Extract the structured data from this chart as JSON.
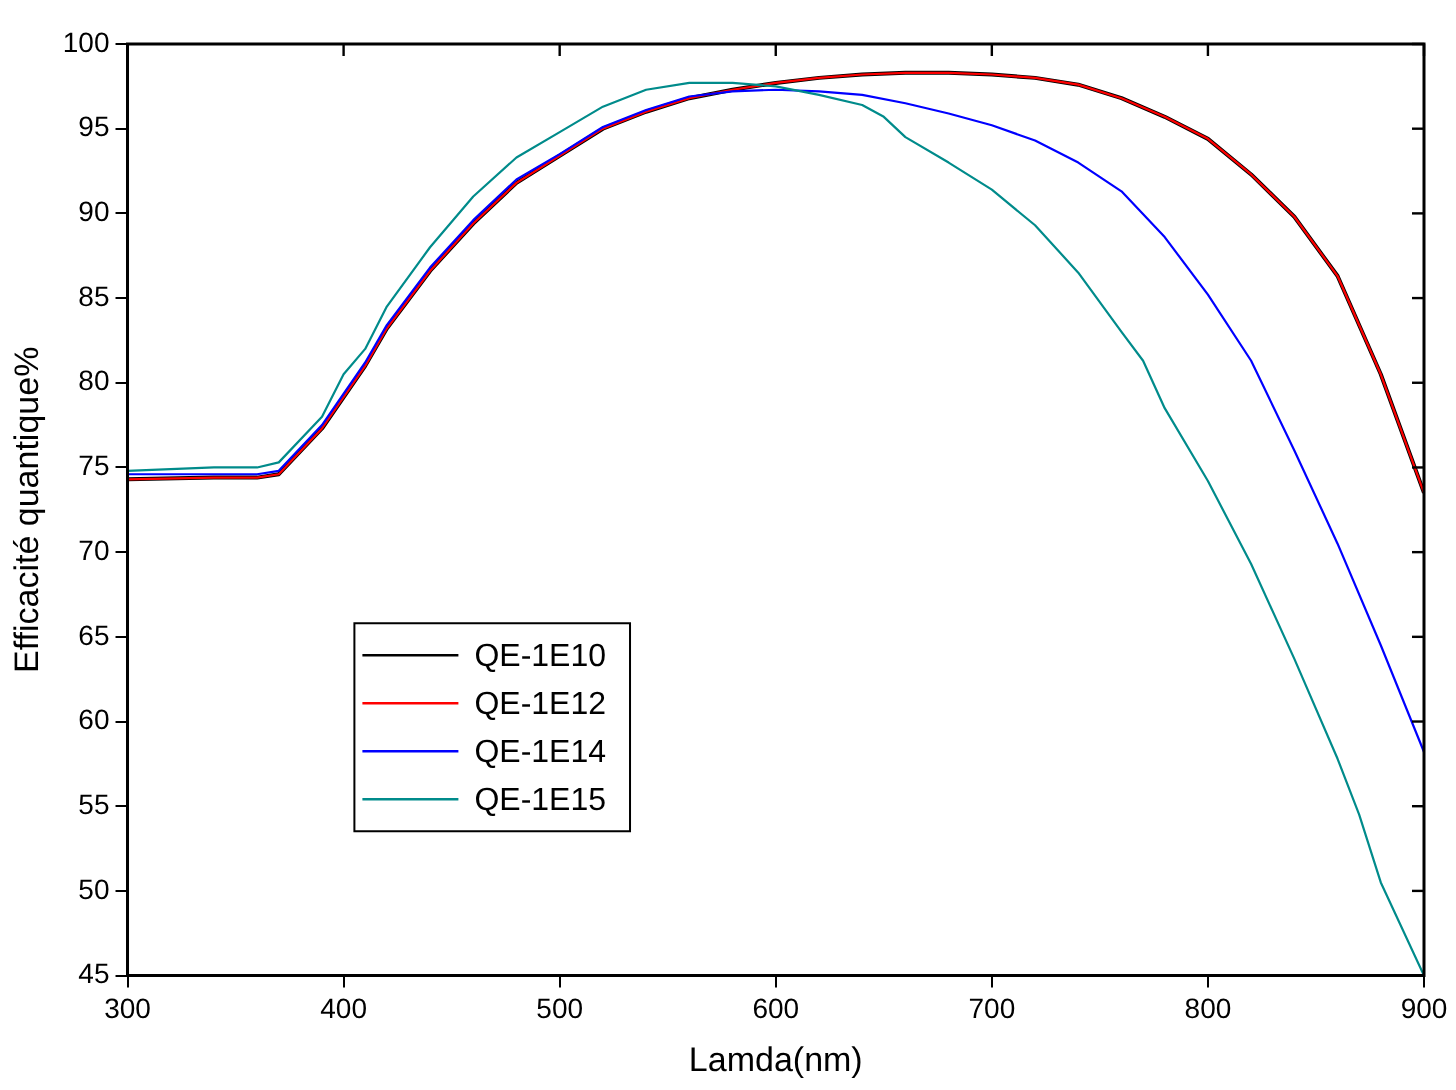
{
  "chart_data": {
    "type": "line",
    "xlabel": "Lamda(nm)",
    "ylabel": "Efficacité quantique%",
    "xlim": [
      300,
      900
    ],
    "xticks": [
      300,
      400,
      500,
      600,
      700,
      800,
      900
    ],
    "ylim": [
      45,
      100
    ],
    "yticks": [
      45,
      50,
      55,
      60,
      65,
      70,
      75,
      80,
      85,
      90,
      95,
      100
    ],
    "legend": "bottom left",
    "grid": false,
    "marker": "none",
    "line_style": "solid",
    "series": [
      {
        "name": "QE-1E10",
        "color": "#000000",
        "x": [
          300,
          340,
          360,
          370,
          390,
          410,
          420,
          440,
          460,
          480,
          500,
          520,
          540,
          560,
          580,
          600,
          620,
          640,
          660,
          680,
          700,
          720,
          740,
          760,
          780,
          800,
          820,
          840,
          860,
          880,
          900
        ],
        "values": [
          74.3,
          74.4,
          74.4,
          74.6,
          77.3,
          81,
          83.2,
          86.6,
          89.4,
          91.8,
          93.4,
          95,
          96,
          96.8,
          97.3,
          97.7,
          98,
          98.2,
          98.3,
          98.3,
          98.2,
          98,
          97.6,
          96.8,
          95.7,
          94.4,
          92.3,
          89.8,
          86.3,
          80.5,
          73.5
        ]
      },
      {
        "name": "QE-1E12",
        "color": "#ff0000",
        "x": [
          300,
          340,
          360,
          370,
          390,
          410,
          420,
          440,
          460,
          480,
          500,
          520,
          540,
          560,
          580,
          600,
          620,
          640,
          660,
          680,
          700,
          720,
          740,
          760,
          780,
          800,
          820,
          840,
          860,
          880,
          900
        ],
        "values": [
          74.3,
          74.4,
          74.4,
          74.6,
          77.3,
          81,
          83.2,
          86.6,
          89.4,
          91.8,
          93.4,
          95,
          96,
          96.8,
          97.3,
          97.7,
          98,
          98.2,
          98.3,
          98.3,
          98.2,
          98,
          97.6,
          96.8,
          95.7,
          94.4,
          92.3,
          89.8,
          86.3,
          80.5,
          73.5
        ]
      },
      {
        "name": "QE-1E14",
        "color": "#0000ff",
        "x": [
          300,
          340,
          360,
          370,
          390,
          410,
          420,
          440,
          460,
          480,
          500,
          520,
          540,
          560,
          580,
          600,
          620,
          640,
          660,
          680,
          700,
          720,
          740,
          760,
          780,
          800,
          820,
          840,
          860,
          880,
          900
        ],
        "values": [
          74.6,
          74.6,
          74.6,
          74.8,
          77.5,
          81.2,
          83.4,
          86.8,
          89.6,
          92,
          93.5,
          95.1,
          96.1,
          96.9,
          97.2,
          97.3,
          97.2,
          97,
          96.5,
          95.9,
          95.2,
          94.3,
          93,
          91.3,
          88.6,
          85.2,
          81.3,
          76,
          70.5,
          64.5,
          58.2
        ]
      },
      {
        "name": "QE-1E15",
        "color": "#008b8b",
        "x": [
          300,
          340,
          360,
          370,
          390,
          400,
          410,
          420,
          440,
          460,
          480,
          500,
          520,
          540,
          560,
          580,
          600,
          620,
          640,
          650,
          660,
          680,
          700,
          720,
          740,
          760,
          770,
          780,
          800,
          820,
          840,
          860,
          870,
          880,
          900
        ],
        "values": [
          74.8,
          75,
          75,
          75.3,
          78,
          80.5,
          82,
          84.5,
          88,
          91,
          93.3,
          94.8,
          96.3,
          97.3,
          97.7,
          97.7,
          97.5,
          97,
          96.4,
          95.7,
          94.5,
          93,
          91.4,
          89.3,
          86.5,
          83,
          81.3,
          78.5,
          74.2,
          69.3,
          63.7,
          57.8,
          54.5,
          50.5,
          45
        ]
      }
    ]
  }
}
